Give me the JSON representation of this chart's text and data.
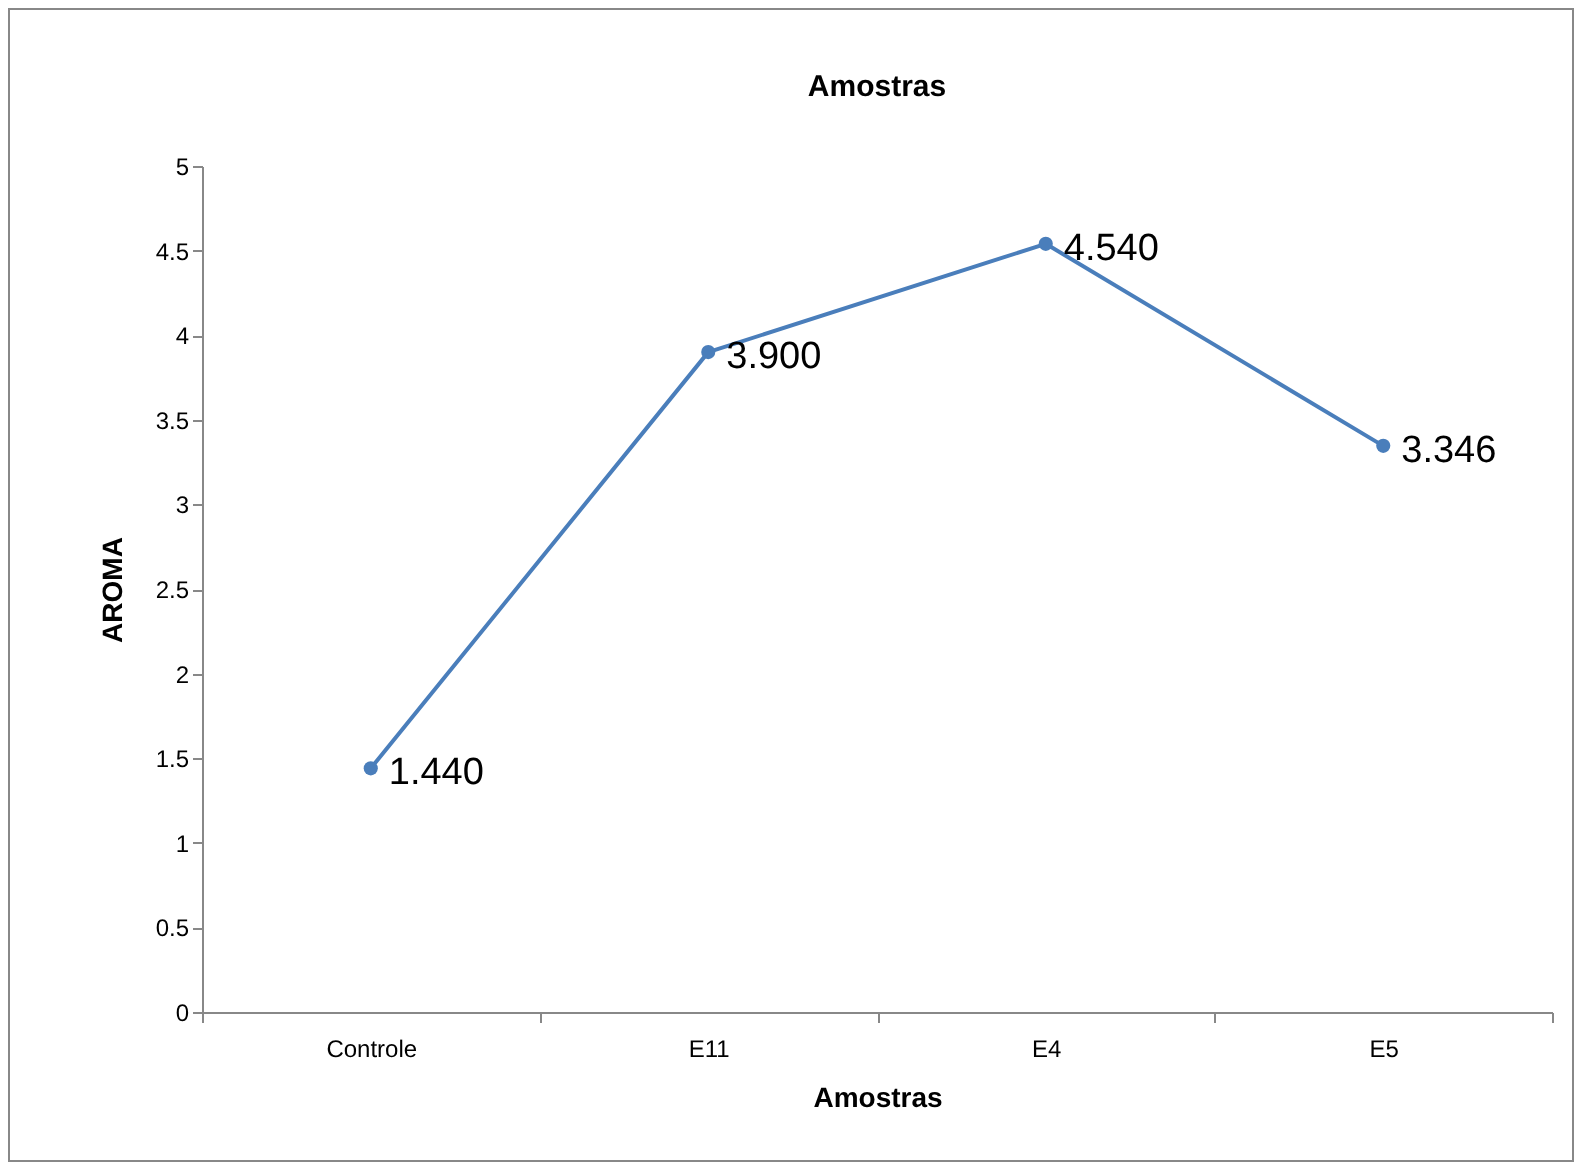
{
  "chart_data": {
    "type": "line",
    "title": "Amostras",
    "xlabel": "Amostras",
    "ylabel": "AROMA",
    "categories": [
      "Controle",
      "E11",
      "E4",
      "E5"
    ],
    "series": [
      {
        "color": "#4a7ebb",
        "values": [
          1.44,
          3.9,
          4.54,
          3.346
        ],
        "value_labels": [
          "1.440",
          "3.900",
          "4.540",
          "3.346"
        ]
      }
    ],
    "ylim": [
      0,
      5
    ],
    "yticks": [
      0,
      0.5,
      1,
      1.5,
      2,
      2.5,
      3,
      3.5,
      4,
      4.5,
      5
    ],
    "marker": "circle",
    "grid": false,
    "legend": false
  }
}
